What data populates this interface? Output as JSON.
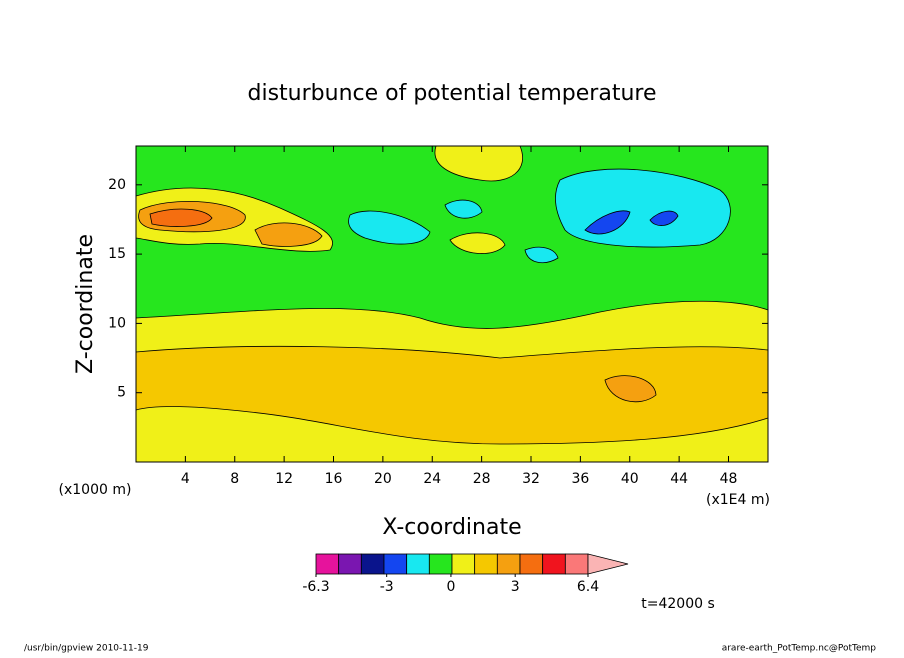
{
  "chart_data": {
    "type": "contour",
    "title": "disturbunce of potential temperature",
    "xlabel": "X-coordinate",
    "ylabel": "Z-coordinate",
    "x_unit": "(x1E4 m)",
    "y_unit": "(x1000 m)",
    "xlim": [
      0,
      51.2
    ],
    "ylim": [
      0,
      22.8
    ],
    "xticks": [
      4,
      8,
      12,
      16,
      20,
      24,
      28,
      32,
      36,
      40,
      44,
      48
    ],
    "yticks": [
      5,
      10,
      15,
      20
    ],
    "colorbar": {
      "lim": [
        -6.3,
        6.4
      ],
      "ticks": [
        -6.3,
        -3,
        0,
        3,
        6.4
      ],
      "colors": [
        "#e6139c",
        "#7a16b0",
        "#0a148c",
        "#1446f0",
        "#18e8f0",
        "#26e61e",
        "#f0f018",
        "#f5c800",
        "#f5a010",
        "#f56e10",
        "#f0141e",
        "#fa7878",
        "#fab4b4"
      ]
    },
    "time_label": "t=42000 s",
    "footer_left": "/usr/bin/gpview   2010-11-19",
    "footer_right": "arare-earth_PotTemp.nc@PotTemp"
  }
}
